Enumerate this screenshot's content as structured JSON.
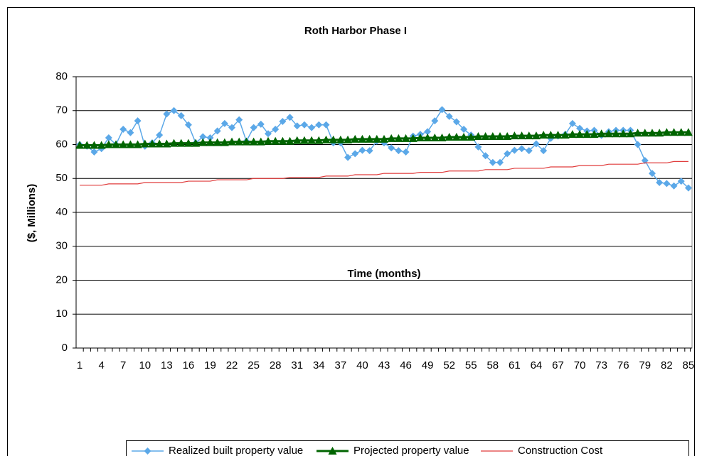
{
  "chart_data": {
    "type": "line",
    "title": "Roth Harbor Phase I",
    "x_label": "Time (months)",
    "y_label": "($, Millions)",
    "x": [
      1,
      2,
      3,
      4,
      5,
      6,
      7,
      8,
      9,
      10,
      11,
      12,
      13,
      14,
      15,
      16,
      17,
      18,
      19,
      20,
      21,
      22,
      23,
      24,
      25,
      26,
      27,
      28,
      29,
      30,
      31,
      32,
      33,
      34,
      35,
      36,
      37,
      38,
      39,
      40,
      41,
      42,
      43,
      44,
      45,
      46,
      47,
      48,
      49,
      50,
      51,
      52,
      53,
      54,
      55,
      56,
      57,
      58,
      59,
      60,
      61,
      62,
      63,
      64,
      65,
      66,
      67,
      68,
      69,
      70,
      71,
      72,
      73,
      74,
      75,
      76,
      77,
      78,
      79,
      80,
      81,
      82,
      83,
      84,
      85
    ],
    "xlim": [
      0.5,
      85.5
    ],
    "xticks": [
      1,
      4,
      7,
      10,
      13,
      16,
      19,
      22,
      25,
      28,
      31,
      34,
      37,
      40,
      43,
      46,
      49,
      52,
      55,
      58,
      61,
      64,
      67,
      70,
      73,
      76,
      79,
      82,
      85
    ],
    "ylim": [
      0,
      80
    ],
    "yticks": [
      0,
      10,
      20,
      30,
      40,
      50,
      60,
      70,
      80
    ],
    "grid": true,
    "legend": "bottom",
    "series": [
      {
        "name": "Realized built property value",
        "color": "#5ba8e8",
        "marker": "diamond",
        "values": [
          60,
          59.5,
          57.8,
          58.8,
          62,
          60,
          64.5,
          63.5,
          67,
          59.5,
          60.5,
          62.8,
          69,
          70,
          68.5,
          65.8,
          60.5,
          62.3,
          62,
          64,
          66.2,
          65,
          67.3,
          61,
          65,
          66,
          63.2,
          64.5,
          66.8,
          68,
          65.5,
          65.8,
          65,
          65.8,
          65.8,
          60.5,
          60.5,
          56.2,
          57.3,
          58.3,
          58.2,
          61,
          60.5,
          59,
          58.2,
          57.8,
          62.5,
          63,
          63.8,
          67,
          70.3,
          68.3,
          66.7,
          64.5,
          62.8,
          59.3,
          56.7,
          54.7,
          54.7,
          57.3,
          58.3,
          58.8,
          58.2,
          60.2,
          58.2,
          61.8,
          62.5,
          63,
          66.2,
          64.8,
          64,
          64.2,
          62.7,
          63.8,
          64.2,
          64.2,
          64.2,
          60,
          55.3,
          51.5,
          48.8,
          48.5,
          47.8,
          49.2,
          47.2
        ]
      },
      {
        "name": "Projected property value",
        "color": "#006400",
        "marker": "triangle",
        "values": [
          59.8,
          59.8,
          59.8,
          59.8,
          60,
          60,
          60,
          60,
          60,
          60.2,
          60.2,
          60.2,
          60.2,
          60.4,
          60.4,
          60.4,
          60.4,
          60.6,
          60.6,
          60.6,
          60.6,
          60.8,
          60.8,
          60.8,
          60.8,
          60.8,
          61,
          61,
          61,
          61,
          61.2,
          61.2,
          61.2,
          61.2,
          61.4,
          61.4,
          61.4,
          61.4,
          61.6,
          61.6,
          61.6,
          61.6,
          61.6,
          61.8,
          61.8,
          61.8,
          61.8,
          62,
          62,
          62,
          62,
          62.2,
          62.2,
          62.2,
          62.2,
          62.4,
          62.4,
          62.4,
          62.4,
          62.4,
          62.6,
          62.6,
          62.6,
          62.6,
          62.8,
          62.8,
          62.8,
          62.8,
          63,
          63,
          63,
          63,
          63.2,
          63.2,
          63.2,
          63.2,
          63.2,
          63.4,
          63.4,
          63.4,
          63.4,
          63.6,
          63.6,
          63.6,
          63.6
        ]
      },
      {
        "name": "Construction Cost",
        "color": "#e03c3c",
        "marker": "none",
        "values": [
          48,
          48,
          48,
          48,
          48.4,
          48.4,
          48.4,
          48.4,
          48.4,
          48.8,
          48.8,
          48.8,
          48.8,
          48.8,
          48.8,
          49.2,
          49.2,
          49.2,
          49.2,
          49.6,
          49.6,
          49.6,
          49.6,
          49.6,
          50,
          50,
          50,
          50,
          50,
          50.3,
          50.3,
          50.3,
          50.3,
          50.3,
          50.7,
          50.7,
          50.7,
          50.7,
          51.1,
          51.1,
          51.1,
          51.1,
          51.5,
          51.5,
          51.5,
          51.5,
          51.5,
          51.8,
          51.8,
          51.8,
          51.8,
          52.2,
          52.2,
          52.2,
          52.2,
          52.2,
          52.6,
          52.6,
          52.6,
          52.6,
          53,
          53,
          53,
          53,
          53,
          53.4,
          53.4,
          53.4,
          53.4,
          53.8,
          53.8,
          53.8,
          53.8,
          54.2,
          54.2,
          54.2,
          54.2,
          54.2,
          54.6,
          54.6,
          54.6,
          54.6,
          55,
          55,
          55
        ]
      }
    ]
  }
}
